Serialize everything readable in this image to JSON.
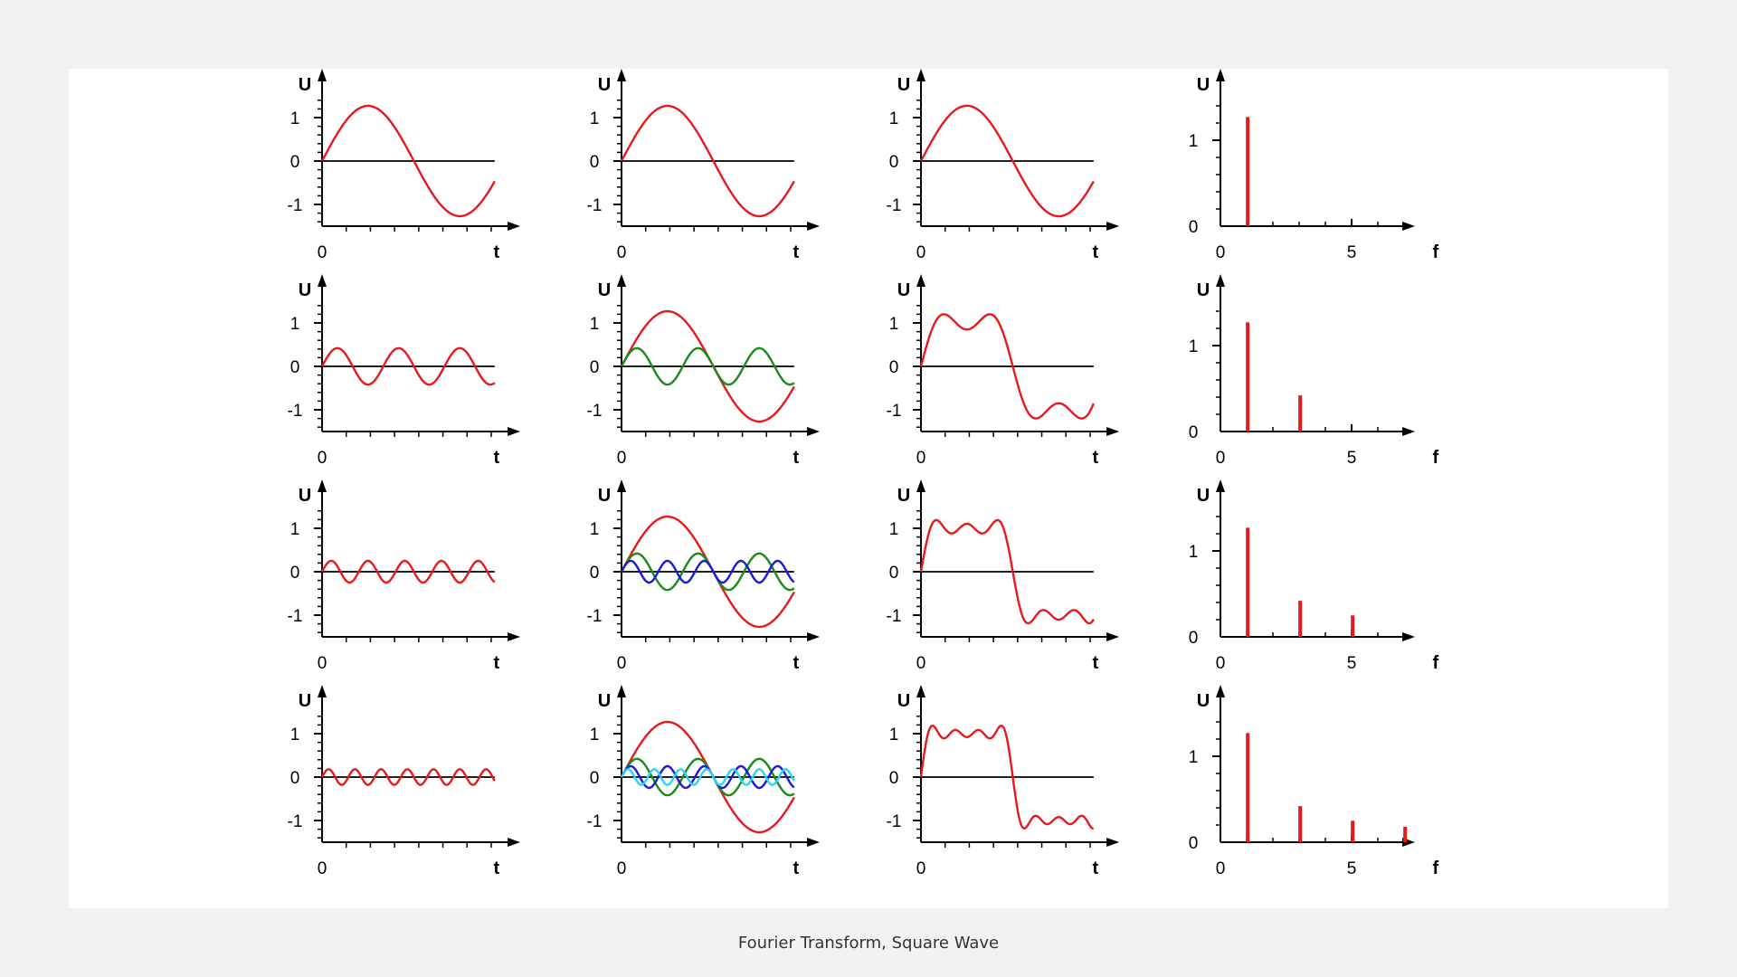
{
  "caption": "Fourier Transform, Square Wave",
  "colors": {
    "background": "#f2f2f2",
    "panel": "#ffffff",
    "axis": "#000000",
    "harmonic_1": "#e8191c",
    "harmonic_3": "#1a8a1a",
    "harmonic_5": "#1a1ad6",
    "harmonic_7": "#27d6f0",
    "sum": "#e8191c",
    "spectrum": "#e8191c"
  },
  "chart_data": [
    {
      "type": "line",
      "row": 1,
      "column": "harmonic",
      "ylabel": "U",
      "xlabel": "t",
      "ylim": [
        -1.5,
        1.5
      ],
      "yticks": [
        "1",
        "0",
        "-1"
      ],
      "xticks": [
        "0"
      ],
      "x": [
        0,
        1.15
      ],
      "series": [
        {
          "function": "(4/pi)*sin(1*2*pi*t)",
          "harmonic": 1,
          "amplitude": 1.27,
          "color": "#e8191c"
        }
      ]
    },
    {
      "type": "line",
      "row": 1,
      "column": "partial-components",
      "ylabel": "U",
      "xlabel": "t",
      "ylim": [
        -1.5,
        1.5
      ],
      "yticks": [
        "1",
        "0",
        "-1"
      ],
      "xticks": [
        "0"
      ],
      "x": [
        0,
        1.15
      ],
      "series": [
        {
          "function": "(4/pi)*sin(1*2*pi*t)",
          "harmonic": 1,
          "amplitude": 1.27,
          "color": "#e8191c"
        }
      ]
    },
    {
      "type": "line",
      "row": 1,
      "column": "partial-sum",
      "ylabel": "U",
      "xlabel": "t",
      "ylim": [
        -1.5,
        1.5
      ],
      "yticks": [
        "1",
        "0",
        "-1"
      ],
      "xticks": [
        "0"
      ],
      "x": [
        0,
        1.15
      ],
      "series": [
        {
          "function": "sum of harmonics 1",
          "harmonics": [
            1
          ],
          "color": "#e8191c"
        }
      ]
    },
    {
      "type": "bar",
      "row": 1,
      "column": "spectrum",
      "ylabel": "U",
      "xlabel": "f",
      "xlim": [
        0,
        9
      ],
      "ylim": [
        0,
        1.5
      ],
      "xticks": [
        "0",
        "5"
      ],
      "yticks": [
        "1",
        "0"
      ],
      "categories": [
        1
      ],
      "values": [
        1.27
      ],
      "color": "#e8191c"
    },
    {
      "type": "line",
      "row": 2,
      "column": "harmonic",
      "ylabel": "U",
      "xlabel": "t",
      "ylim": [
        -1.5,
        1.5
      ],
      "yticks": [
        "1",
        "0",
        "-1"
      ],
      "xticks": [
        "0"
      ],
      "x": [
        0,
        1.15
      ],
      "series": [
        {
          "function": "(4/(3*pi))*sin(3*2*pi*t)",
          "harmonic": 3,
          "amplitude": 0.42,
          "color": "#e8191c"
        }
      ]
    },
    {
      "type": "line",
      "row": 2,
      "column": "partial-components",
      "ylabel": "U",
      "xlabel": "t",
      "ylim": [
        -1.5,
        1.5
      ],
      "yticks": [
        "1",
        "0",
        "-1"
      ],
      "xticks": [
        "0"
      ],
      "x": [
        0,
        1.15
      ],
      "series": [
        {
          "harmonic": 1,
          "amplitude": 1.27,
          "color": "#e8191c"
        },
        {
          "harmonic": 3,
          "amplitude": 0.42,
          "color": "#1a8a1a"
        }
      ]
    },
    {
      "type": "line",
      "row": 2,
      "column": "partial-sum",
      "ylabel": "U",
      "xlabel": "t",
      "ylim": [
        -1.5,
        1.5
      ],
      "yticks": [
        "1",
        "0",
        "-1"
      ],
      "xticks": [
        "0"
      ],
      "x": [
        0,
        1.15
      ],
      "series": [
        {
          "function": "sum of harmonics 1,3",
          "harmonics": [
            1,
            3
          ],
          "color": "#e8191c"
        }
      ]
    },
    {
      "type": "bar",
      "row": 2,
      "column": "spectrum",
      "ylabel": "U",
      "xlabel": "f",
      "xlim": [
        0,
        9
      ],
      "ylim": [
        0,
        1.5
      ],
      "xticks": [
        "0",
        "5"
      ],
      "yticks": [
        "1",
        "0"
      ],
      "categories": [
        1,
        3
      ],
      "values": [
        1.27,
        0.42
      ],
      "color": "#e8191c"
    },
    {
      "type": "line",
      "row": 3,
      "column": "harmonic",
      "ylabel": "U",
      "xlabel": "t",
      "ylim": [
        -1.5,
        1.5
      ],
      "yticks": [
        "1",
        "0",
        "-1"
      ],
      "xticks": [
        "0"
      ],
      "x": [
        0,
        1.15
      ],
      "series": [
        {
          "function": "(4/(5*pi))*sin(5*2*pi*t)",
          "harmonic": 5,
          "amplitude": 0.25,
          "color": "#e8191c"
        }
      ]
    },
    {
      "type": "line",
      "row": 3,
      "column": "partial-components",
      "ylabel": "U",
      "xlabel": "t",
      "ylim": [
        -1.5,
        1.5
      ],
      "yticks": [
        "1",
        "0",
        "-1"
      ],
      "xticks": [
        "0"
      ],
      "x": [
        0,
        1.15
      ],
      "series": [
        {
          "harmonic": 1,
          "amplitude": 1.27,
          "color": "#e8191c"
        },
        {
          "harmonic": 3,
          "amplitude": 0.42,
          "color": "#1a8a1a"
        },
        {
          "harmonic": 5,
          "amplitude": 0.25,
          "color": "#1a1ad6"
        }
      ]
    },
    {
      "type": "line",
      "row": 3,
      "column": "partial-sum",
      "ylabel": "U",
      "xlabel": "t",
      "ylim": [
        -1.5,
        1.5
      ],
      "yticks": [
        "1",
        "0",
        "-1"
      ],
      "xticks": [
        "0"
      ],
      "x": [
        0,
        1.15
      ],
      "series": [
        {
          "function": "sum of harmonics 1,3,5",
          "harmonics": [
            1,
            3,
            5
          ],
          "color": "#e8191c"
        }
      ]
    },
    {
      "type": "bar",
      "row": 3,
      "column": "spectrum",
      "ylabel": "U",
      "xlabel": "f",
      "xlim": [
        0,
        9
      ],
      "ylim": [
        0,
        1.5
      ],
      "xticks": [
        "0",
        "5"
      ],
      "yticks": [
        "1",
        "0"
      ],
      "categories": [
        1,
        3,
        5
      ],
      "values": [
        1.27,
        0.42,
        0.25
      ],
      "color": "#e8191c"
    },
    {
      "type": "line",
      "row": 4,
      "column": "harmonic",
      "ylabel": "U",
      "xlabel": "t",
      "ylim": [
        -1.5,
        1.5
      ],
      "yticks": [
        "1",
        "0",
        "-1"
      ],
      "xticks": [
        "0"
      ],
      "x": [
        0,
        1.15
      ],
      "series": [
        {
          "function": "(4/(7*pi))*sin(7*2*pi*t)",
          "harmonic": 7,
          "amplitude": 0.18,
          "color": "#e8191c"
        }
      ]
    },
    {
      "type": "line",
      "row": 4,
      "column": "partial-components",
      "ylabel": "U",
      "xlabel": "t",
      "ylim": [
        -1.5,
        1.5
      ],
      "yticks": [
        "1",
        "0",
        "-1"
      ],
      "xticks": [
        "0"
      ],
      "x": [
        0,
        1.15
      ],
      "series": [
        {
          "harmonic": 1,
          "amplitude": 1.27,
          "color": "#e8191c"
        },
        {
          "harmonic": 3,
          "amplitude": 0.42,
          "color": "#1a8a1a"
        },
        {
          "harmonic": 5,
          "amplitude": 0.25,
          "color": "#1a1ad6"
        },
        {
          "harmonic": 7,
          "amplitude": 0.18,
          "color": "#27d6f0"
        }
      ]
    },
    {
      "type": "line",
      "row": 4,
      "column": "partial-sum",
      "ylabel": "U",
      "xlabel": "t",
      "ylim": [
        -1.5,
        1.5
      ],
      "yticks": [
        "1",
        "0",
        "-1"
      ],
      "xticks": [
        "0"
      ],
      "x": [
        0,
        1.15
      ],
      "series": [
        {
          "function": "sum of harmonics 1,3,5,7",
          "harmonics": [
            1,
            3,
            5,
            7
          ],
          "color": "#e8191c"
        }
      ]
    },
    {
      "type": "bar",
      "row": 4,
      "column": "spectrum",
      "ylabel": "U",
      "xlabel": "f",
      "xlim": [
        0,
        9
      ],
      "ylim": [
        0,
        1.5
      ],
      "xticks": [
        "0",
        "5"
      ],
      "yticks": [
        "1",
        "0"
      ],
      "categories": [
        1,
        3,
        5,
        7
      ],
      "values": [
        1.27,
        0.42,
        0.25,
        0.18
      ],
      "color": "#e8191c"
    }
  ]
}
